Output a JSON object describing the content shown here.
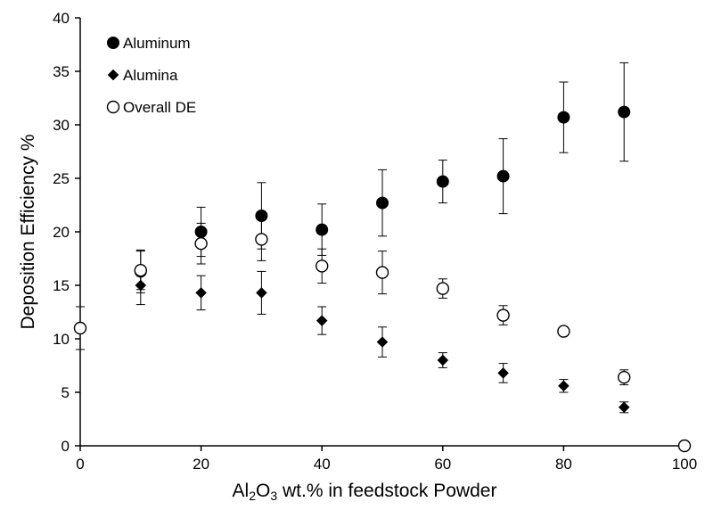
{
  "chart_data": {
    "type": "scatter",
    "title": "",
    "xlabel": "Al2O3 wt.% in feedstock Powder",
    "xlabel_parts": {
      "prefix": "Al",
      "sub1": "2",
      "mid": "O",
      "sub2": "3",
      "suffix": " wt.% in feedstock Powder"
    },
    "ylabel": "Deposition Efficiency %",
    "xlim": [
      0,
      100
    ],
    "ylim": [
      0,
      40
    ],
    "xticks": [
      0,
      20,
      40,
      60,
      80,
      100
    ],
    "yticks": [
      0,
      5,
      10,
      15,
      20,
      25,
      30,
      35,
      40
    ],
    "grid": false,
    "legend_position": "top-left",
    "error_bars": true,
    "series": [
      {
        "name": "Aluminum",
        "marker": "filled-circle",
        "color": "#000000",
        "points": [
          {
            "x": 10,
            "y": 16.3,
            "err": 2.0
          },
          {
            "x": 20,
            "y": 20.0,
            "err": 2.3
          },
          {
            "x": 30,
            "y": 21.5,
            "err": 3.1
          },
          {
            "x": 40,
            "y": 20.2,
            "err": 2.4
          },
          {
            "x": 50,
            "y": 22.7,
            "err": 3.1
          },
          {
            "x": 60,
            "y": 24.7,
            "err": 2.0
          },
          {
            "x": 70,
            "y": 25.2,
            "err": 3.5
          },
          {
            "x": 80,
            "y": 30.7,
            "err": 3.3
          },
          {
            "x": 90,
            "y": 31.2,
            "err": 4.6
          }
        ]
      },
      {
        "name": "Alumina",
        "marker": "filled-diamond",
        "color": "#000000",
        "points": [
          {
            "x": 10,
            "y": 15.0,
            "err": 1.8
          },
          {
            "x": 20,
            "y": 14.3,
            "err": 1.6
          },
          {
            "x": 30,
            "y": 14.3,
            "err": 2.0
          },
          {
            "x": 40,
            "y": 11.7,
            "err": 1.3
          },
          {
            "x": 50,
            "y": 9.7,
            "err": 1.4
          },
          {
            "x": 60,
            "y": 8.0,
            "err": 0.7
          },
          {
            "x": 70,
            "y": 6.8,
            "err": 0.9
          },
          {
            "x": 80,
            "y": 5.6,
            "err": 0.6
          },
          {
            "x": 90,
            "y": 3.6,
            "err": 0.5
          }
        ]
      },
      {
        "name": "Overall DE",
        "marker": "open-circle",
        "color": "#000000",
        "points": [
          {
            "x": 0,
            "y": 11.0,
            "err": 2.0
          },
          {
            "x": 10,
            "y": 16.4,
            "err": 1.8
          },
          {
            "x": 20,
            "y": 18.9,
            "err": 1.9
          },
          {
            "x": 30,
            "y": 19.3,
            "err": 2.0
          },
          {
            "x": 40,
            "y": 16.8,
            "err": 1.6
          },
          {
            "x": 50,
            "y": 16.2,
            "err": 2.0
          },
          {
            "x": 60,
            "y": 14.7,
            "err": 0.9
          },
          {
            "x": 70,
            "y": 12.2,
            "err": 0.9
          },
          {
            "x": 80,
            "y": 10.7,
            "err": 0.3
          },
          {
            "x": 90,
            "y": 6.4,
            "err": 0.7
          },
          {
            "x": 100,
            "y": 0.0,
            "err": 0
          }
        ]
      }
    ]
  }
}
